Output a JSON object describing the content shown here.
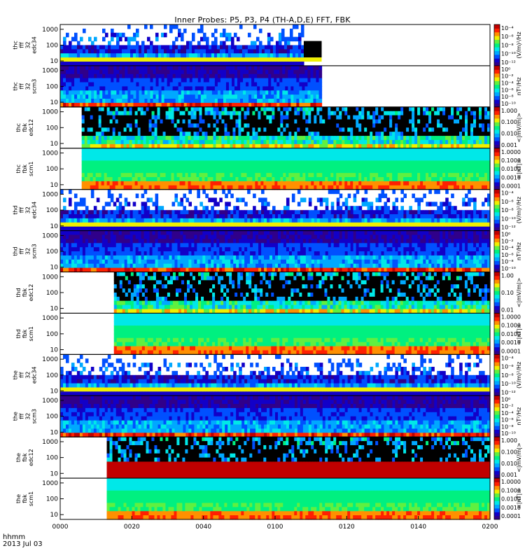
{
  "title": "Inner Probes: P5, P3, P4 (TH-A,D,E) FFT, FBK",
  "xaxis": {
    "unit_label": "hhmm",
    "date_label": "2013 Jul 03",
    "ticks": [
      "0000",
      "0020",
      "0040",
      "0100",
      "0120",
      "0140",
      "0200"
    ]
  },
  "colors": {
    "frame": "#000000",
    "background": "#ffffff",
    "colormap": [
      "#30008a",
      "#1200c8",
      "#0050ff",
      "#00a8ff",
      "#00e8e8",
      "#00f080",
      "#60f040",
      "#f0f000",
      "#ff9000",
      "#ff2000",
      "#c00000"
    ]
  },
  "chart_data": {
    "type": "heatmap",
    "title": "Inner Probes: P5, P3, P4 (TH-A,D,E) FFT, FBK",
    "xlabel": "hhmm",
    "xdate": "2013 Jul 03",
    "xlim": [
      "0000",
      "0200"
    ],
    "ylim": [
      5,
      2000
    ],
    "yscale": "log",
    "yticks": [
      "1000",
      "100",
      "10"
    ],
    "panels": [
      {
        "label": [
          "thc",
          "fff",
          "32",
          "edc34"
        ],
        "unit": "(V/m)²/Hz",
        "cticks": [
          "10⁻⁴",
          "10⁻⁶",
          "10⁻⁸",
          "10⁻¹⁰",
          "10⁻¹²"
        ],
        "style": "efield",
        "data_start": "0000",
        "data_end": "0108",
        "tail_end": "0113"
      },
      {
        "label": [
          "thc",
          "fff",
          "32",
          "scm3"
        ],
        "unit": "nT²/Hz",
        "cticks": [
          "10⁰",
          "10⁻²",
          "10⁻⁴",
          "10⁻⁶",
          "10⁻⁸",
          "10⁻¹⁰"
        ],
        "style": "scm",
        "data_start": "0000",
        "data_end": "0113"
      },
      {
        "label": [
          "thc",
          "fbk",
          "edc12"
        ],
        "unit": "<|mV/m|>",
        "cticks": [
          "1.000",
          "0.100",
          "0.010",
          "0.001"
        ],
        "style": "fbk-e",
        "data_start": "0006",
        "data_end": "0200"
      },
      {
        "label": [
          "thc",
          "fbk",
          "scm1"
        ],
        "unit": "<|nT|>",
        "cticks": [
          "1.0000",
          "0.1000",
          "0.0100",
          "0.0010",
          "0.0001"
        ],
        "style": "fbk-b",
        "data_start": "0006",
        "data_end": "0200"
      },
      {
        "label": [
          "thd",
          "fff",
          "32",
          "edc34"
        ],
        "unit": "(V/m)²/Hz",
        "cticks": [
          "10⁻⁴",
          "10⁻⁶",
          "10⁻⁸",
          "10⁻¹⁰",
          "10⁻¹²"
        ],
        "style": "efield",
        "data_start": "0000",
        "data_end": "0200"
      },
      {
        "label": [
          "thd",
          "fff",
          "32",
          "scm3"
        ],
        "unit": "nT²/Hz",
        "cticks": [
          "10⁰",
          "10⁻²",
          "10⁻⁴",
          "10⁻⁶",
          "10⁻⁸",
          "10⁻¹⁰"
        ],
        "style": "scm",
        "data_start": "0000",
        "data_end": "0200"
      },
      {
        "label": [
          "thd",
          "fbk",
          "edc12"
        ],
        "unit": "<|mV/m|>",
        "cticks": [
          "1.00",
          "0.10",
          "0.01"
        ],
        "style": "fbk-e",
        "data_start": "0015",
        "data_end": "0200"
      },
      {
        "label": [
          "thd",
          "fbk",
          "scm1"
        ],
        "unit": "<|nT|>",
        "cticks": [
          "1.0000",
          "0.1000",
          "0.0100",
          "0.0010",
          "0.0001"
        ],
        "style": "fbk-b",
        "data_start": "0015",
        "data_end": "0200"
      },
      {
        "label": [
          "the",
          "fff",
          "32",
          "edc34"
        ],
        "unit": "(V/m)²/Hz",
        "cticks": [
          "10⁻⁴",
          "10⁻⁶",
          "10⁻⁸",
          "10⁻¹⁰",
          "10⁻¹²"
        ],
        "style": "efield",
        "data_start": "0000",
        "data_end": "0200"
      },
      {
        "label": [
          "the",
          "fff",
          "32",
          "scm3"
        ],
        "unit": "nT²/Hz",
        "cticks": [
          "10⁰",
          "10⁻²",
          "10⁻⁴",
          "10⁻⁶",
          "10⁻⁸",
          "10⁻¹⁰"
        ],
        "style": "scm",
        "data_start": "0000",
        "data_end": "0200"
      },
      {
        "label": [
          "the",
          "fbk",
          "edc12"
        ],
        "unit": "<|mV/m|>",
        "cticks": [
          "1.000",
          "0.100",
          "0.010",
          "0.001"
        ],
        "style": "fbk-e-red",
        "data_start": "0013",
        "data_end": "0200"
      },
      {
        "label": [
          "the",
          "fbk",
          "scm1"
        ],
        "unit": "<|nT|>",
        "cticks": [
          "1.0000",
          "0.1000",
          "0.0100",
          "0.0010",
          "0.0001"
        ],
        "style": "fbk-b",
        "data_start": "0013",
        "data_end": "0200"
      }
    ],
    "grid": false
  }
}
